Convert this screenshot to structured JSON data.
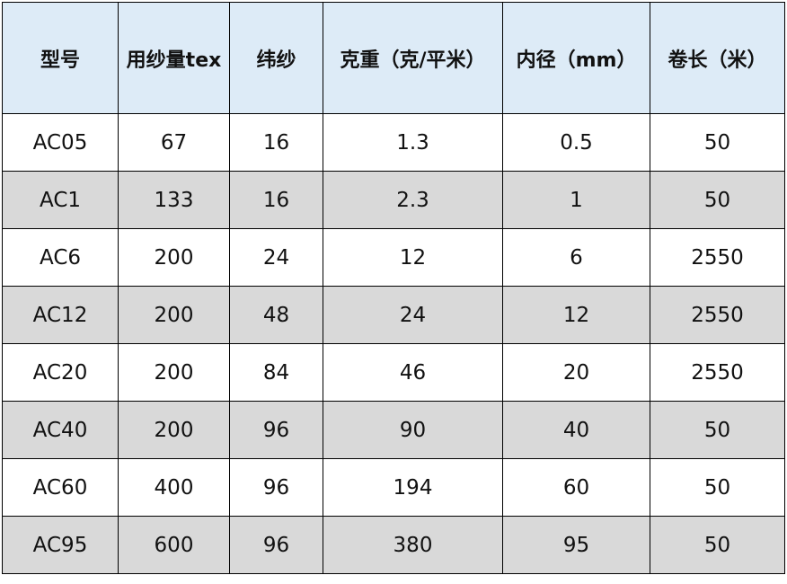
{
  "colors": {
    "header_bg": "#ddebf7",
    "alt_row_bg": "#d9d9d9",
    "border": "#000000"
  },
  "table": {
    "headers": [
      "型号",
      "用纱量tex",
      "纬纱",
      "克重（克/平米）",
      "内径（mm）",
      "卷长（米）"
    ],
    "rows": [
      [
        "AC05",
        "67",
        "16",
        "1.3",
        "0.5",
        "50"
      ],
      [
        "AC1",
        "133",
        "16",
        "2.3",
        "1",
        "50"
      ],
      [
        "AC6",
        "200",
        "24",
        "12",
        "6",
        "2550"
      ],
      [
        "AC12",
        "200",
        "48",
        "24",
        "12",
        "2550"
      ],
      [
        "AC20",
        "200",
        "84",
        "46",
        "20",
        "2550"
      ],
      [
        "AC40",
        "200",
        "96",
        "90",
        "40",
        "50"
      ],
      [
        "AC60",
        "400",
        "96",
        "194",
        "60",
        "50"
      ],
      [
        "AC95",
        "600",
        "96",
        "380",
        "95",
        "50"
      ]
    ]
  }
}
